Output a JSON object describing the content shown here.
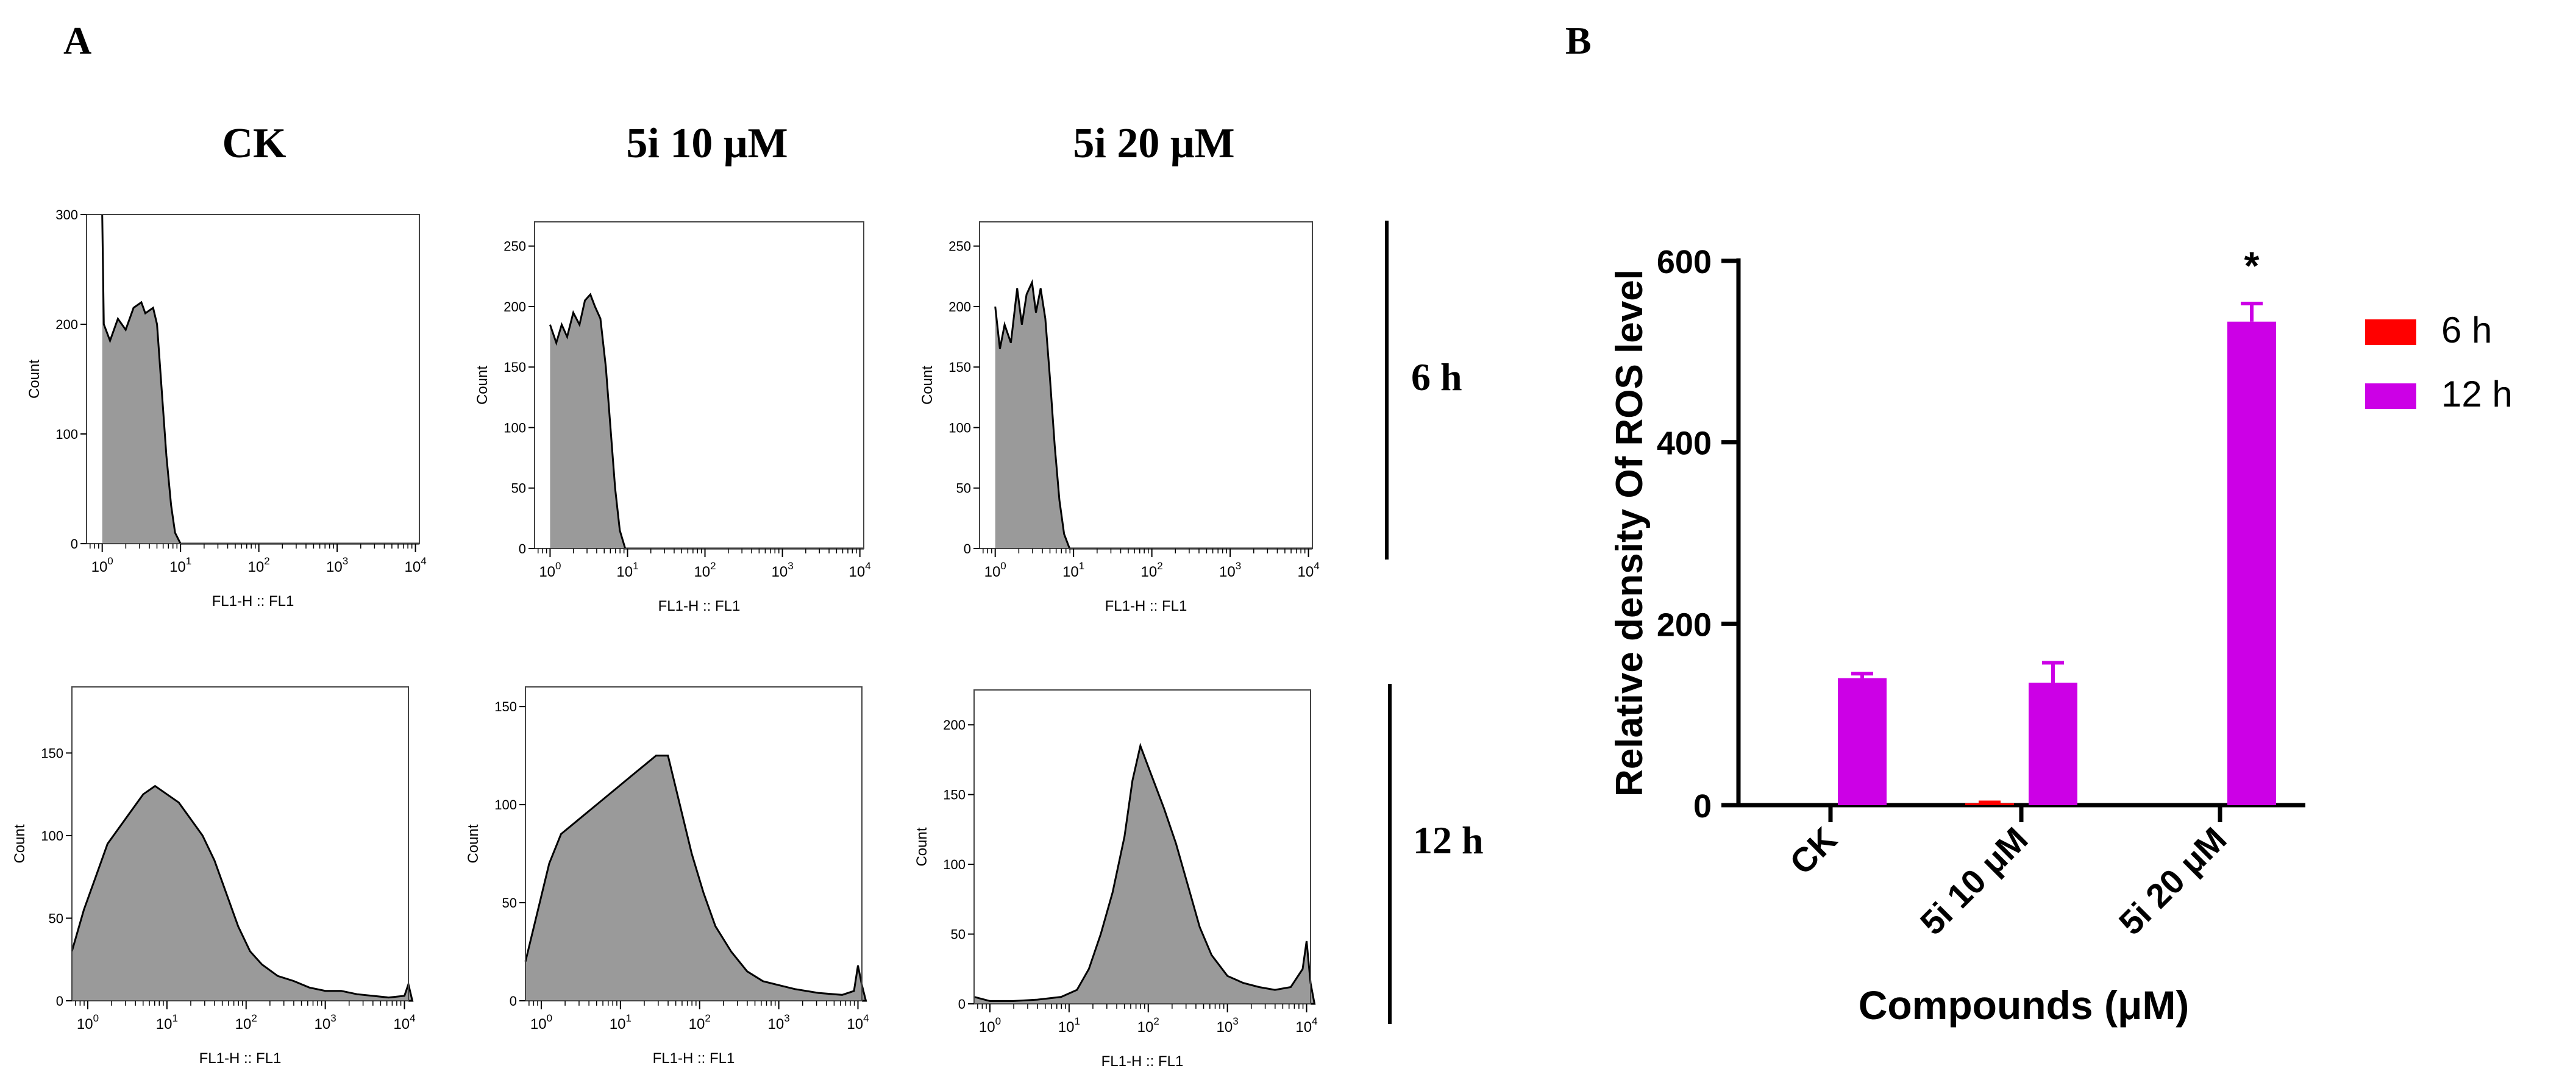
{
  "panel_a": {
    "label": "A",
    "column_titles": [
      "CK",
      "5i 10 μM",
      "5i 20 μM"
    ],
    "row_labels": [
      "6 h",
      "12 h"
    ],
    "histograms": [
      {
        "row": "6 h",
        "column": "CK",
        "ylabel": "Count",
        "xlabel": "FL1-H :: FL1",
        "ylim": [
          0,
          300
        ],
        "yticks": [
          0,
          100,
          200,
          300
        ],
        "shape": {
          "onset_log": 0.0,
          "points": [
            [
              0.0,
              300
            ],
            [
              0.02,
              200
            ],
            [
              0.1,
              185
            ],
            [
              0.2,
              205
            ],
            [
              0.3,
              195
            ],
            [
              0.4,
              215
            ],
            [
              0.5,
              220
            ],
            [
              0.55,
              210
            ],
            [
              0.65,
              215
            ],
            [
              0.7,
              200
            ],
            [
              0.76,
              140
            ],
            [
              0.82,
              80
            ],
            [
              0.88,
              35
            ],
            [
              0.93,
              10
            ],
            [
              1.0,
              0
            ]
          ]
        }
      },
      {
        "row": "6 h",
        "column": "5i 10 μM",
        "ylabel": "Count",
        "xlabel": "FL1-H :: FL1",
        "ylim": [
          0,
          270
        ],
        "yticks": [
          0,
          50,
          100,
          150,
          200,
          250
        ],
        "shape": {
          "onset_log": 0.0,
          "points": [
            [
              0.0,
              185
            ],
            [
              0.08,
              170
            ],
            [
              0.15,
              185
            ],
            [
              0.22,
              175
            ],
            [
              0.3,
              195
            ],
            [
              0.38,
              185
            ],
            [
              0.45,
              205
            ],
            [
              0.52,
              210
            ],
            [
              0.58,
              200
            ],
            [
              0.65,
              190
            ],
            [
              0.72,
              150
            ],
            [
              0.78,
              100
            ],
            [
              0.84,
              50
            ],
            [
              0.9,
              15
            ],
            [
              0.97,
              0
            ]
          ]
        }
      },
      {
        "row": "6 h",
        "column": "5i 20 μM",
        "ylabel": "Count",
        "xlabel": "FL1-H :: FL1",
        "ylim": [
          0,
          270
        ],
        "yticks": [
          0,
          50,
          100,
          150,
          200,
          250
        ],
        "shape": {
          "onset_log": 0.0,
          "points": [
            [
              0.0,
              200
            ],
            [
              0.06,
              165
            ],
            [
              0.12,
              185
            ],
            [
              0.2,
              170
            ],
            [
              0.28,
              215
            ],
            [
              0.34,
              185
            ],
            [
              0.4,
              210
            ],
            [
              0.47,
              220
            ],
            [
              0.52,
              195
            ],
            [
              0.58,
              215
            ],
            [
              0.64,
              190
            ],
            [
              0.7,
              140
            ],
            [
              0.76,
              85
            ],
            [
              0.82,
              40
            ],
            [
              0.88,
              12
            ],
            [
              0.95,
              0
            ]
          ]
        }
      },
      {
        "row": "12 h",
        "column": "CK",
        "ylabel": "Count",
        "xlabel": "FL1-H :: FL1",
        "ylim": [
          0,
          190
        ],
        "yticks": [
          0,
          50,
          100,
          150
        ],
        "shape": {
          "onset_log": -0.2,
          "points": [
            [
              -0.2,
              30
            ],
            [
              -0.05,
              55
            ],
            [
              0.1,
              75
            ],
            [
              0.25,
              95
            ],
            [
              0.4,
              105
            ],
            [
              0.55,
              115
            ],
            [
              0.7,
              125
            ],
            [
              0.85,
              130
            ],
            [
              1.0,
              125
            ],
            [
              1.15,
              120
            ],
            [
              1.3,
              110
            ],
            [
              1.45,
              100
            ],
            [
              1.6,
              85
            ],
            [
              1.75,
              65
            ],
            [
              1.9,
              45
            ],
            [
              2.05,
              30
            ],
            [
              2.2,
              22
            ],
            [
              2.4,
              15
            ],
            [
              2.6,
              12
            ],
            [
              2.8,
              8
            ],
            [
              3.0,
              6
            ],
            [
              3.2,
              6
            ],
            [
              3.4,
              4
            ],
            [
              3.6,
              3
            ],
            [
              3.8,
              2
            ],
            [
              4.0,
              3
            ],
            [
              4.05,
              10
            ],
            [
              4.1,
              0
            ]
          ]
        }
      },
      {
        "row": "12 h",
        "column": "5i 10 μM",
        "ylabel": "Count",
        "xlabel": "FL1-H :: FL1",
        "ylim": [
          0,
          160
        ],
        "yticks": [
          0,
          50,
          100,
          150
        ],
        "shape": {
          "onset_log": -0.2,
          "points": [
            [
              -0.2,
              20
            ],
            [
              -0.05,
              45
            ],
            [
              0.1,
              70
            ],
            [
              0.25,
              85
            ],
            [
              0.4,
              90
            ],
            [
              0.55,
              95
            ],
            [
              0.7,
              100
            ],
            [
              0.85,
              105
            ],
            [
              1.0,
              110
            ],
            [
              1.15,
              115
            ],
            [
              1.3,
              120
            ],
            [
              1.45,
              125
            ],
            [
              1.6,
              125
            ],
            [
              1.75,
              100
            ],
            [
              1.9,
              75
            ],
            [
              2.05,
              55
            ],
            [
              2.2,
              38
            ],
            [
              2.4,
              25
            ],
            [
              2.6,
              15
            ],
            [
              2.8,
              10
            ],
            [
              3.0,
              8
            ],
            [
              3.2,
              6
            ],
            [
              3.5,
              4
            ],
            [
              3.8,
              3
            ],
            [
              3.95,
              5
            ],
            [
              4.0,
              18
            ],
            [
              4.05,
              8
            ],
            [
              4.1,
              0
            ]
          ]
        }
      },
      {
        "row": "12 h",
        "column": "5i 20 μM",
        "ylabel": "Count",
        "xlabel": "FL1-H :: FL1",
        "ylim": [
          0,
          225
        ],
        "yticks": [
          0,
          50,
          100,
          150,
          200
        ],
        "shape": {
          "onset_log": -0.2,
          "points": [
            [
              -0.2,
              5
            ],
            [
              0.0,
              2
            ],
            [
              0.3,
              2
            ],
            [
              0.6,
              3
            ],
            [
              0.9,
              5
            ],
            [
              1.1,
              10
            ],
            [
              1.25,
              25
            ],
            [
              1.4,
              50
            ],
            [
              1.55,
              80
            ],
            [
              1.7,
              120
            ],
            [
              1.8,
              160
            ],
            [
              1.9,
              185
            ],
            [
              2.0,
              170
            ],
            [
              2.1,
              155
            ],
            [
              2.2,
              140
            ],
            [
              2.35,
              115
            ],
            [
              2.5,
              85
            ],
            [
              2.65,
              55
            ],
            [
              2.8,
              35
            ],
            [
              3.0,
              20
            ],
            [
              3.2,
              15
            ],
            [
              3.4,
              12
            ],
            [
              3.6,
              10
            ],
            [
              3.8,
              12
            ],
            [
              3.95,
              25
            ],
            [
              4.0,
              45
            ],
            [
              4.05,
              15
            ],
            [
              4.1,
              0
            ]
          ]
        }
      }
    ],
    "x_tick_labels": [
      {
        "base": "10",
        "exp": "0"
      },
      {
        "base": "10",
        "exp": "1"
      },
      {
        "base": "10",
        "exp": "2"
      },
      {
        "base": "10",
        "exp": "3"
      },
      {
        "base": "10",
        "exp": "4"
      }
    ]
  },
  "chart_data": {
    "type": "bar",
    "label": "B",
    "categories": [
      "CK",
      "5i 10 μM",
      "5i 20 μM"
    ],
    "series": [
      {
        "name": "6 h",
        "color": "#ff0000",
        "values": [
          0,
          2,
          0
        ],
        "errors": [
          0,
          1,
          0
        ]
      },
      {
        "name": "12 h",
        "color": "#cc00e6",
        "values": [
          140,
          135,
          533
        ],
        "errors": [
          5,
          22,
          20
        ]
      }
    ],
    "annotations": [
      {
        "category": "5i 20 μM",
        "series": "12 h",
        "text": "*"
      }
    ],
    "title": "",
    "xlabel": "Compounds (μM)",
    "ylabel": "Relative density Of ROS level",
    "ylim": [
      0,
      600
    ],
    "yticks": [
      0,
      200,
      400,
      600
    ],
    "legend_position": "right"
  }
}
